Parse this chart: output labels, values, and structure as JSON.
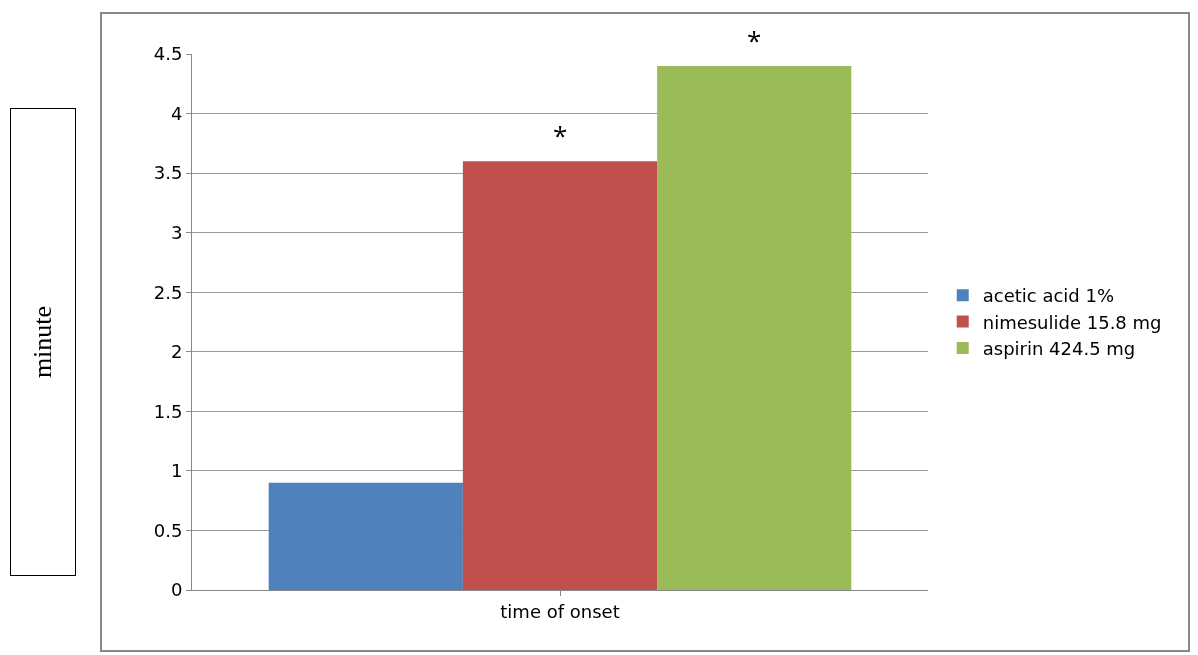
{
  "chart_data": {
    "type": "bar",
    "categories": [
      "time of onset"
    ],
    "series": [
      {
        "name": "acetic acid 1%",
        "color": "#4f81bd",
        "values": [
          0.9
        ]
      },
      {
        "name": "nimesulide 15.8 mg",
        "color": "#c0504d",
        "values": [
          3.6
        ]
      },
      {
        "name": "aspirin 424.5 mg",
        "color": "#9bbb59",
        "values": [
          4.4
        ]
      }
    ],
    "ylabel": "minute",
    "ylim": [
      0,
      4.5
    ],
    "yticks": [
      0,
      0.5,
      1,
      1.5,
      2,
      2.5,
      3,
      3.5,
      4,
      4.5
    ],
    "annotations": [
      "*",
      "*"
    ],
    "grid": "y",
    "legend": "right"
  }
}
